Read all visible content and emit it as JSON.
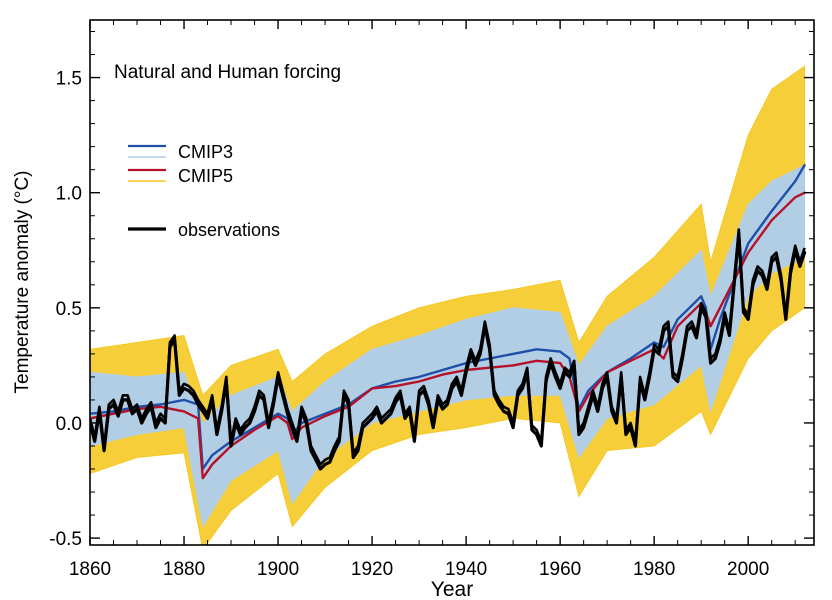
{
  "chart_data": {
    "type": "line",
    "title": "Natural and Human forcing",
    "xlabel": "Year",
    "ylabel": "Temperature anomaly (°C)",
    "xlim": [
      1860,
      2014
    ],
    "ylim": [
      -0.53,
      1.75
    ],
    "xticks": [
      1860,
      1880,
      1900,
      1920,
      1940,
      1960,
      1980,
      2000
    ],
    "xtick_labels": [
      "1860",
      "1880",
      "1900",
      "1920",
      "1940",
      "1960",
      "1980",
      "2000"
    ],
    "yticks": [
      -0.5,
      0.0,
      0.5,
      1.0,
      1.5
    ],
    "ytick_labels": [
      "-0.5",
      "0.0",
      "0.5",
      "1.0",
      "1.5"
    ],
    "grid": false,
    "legend_position": "top-left",
    "legend": [
      {
        "label": "CMIP3",
        "colors": [
          "#1f4fa8",
          "#aecdee"
        ]
      },
      {
        "label": "CMIP5",
        "colors": [
          "#b5122a",
          "#f5c518"
        ]
      },
      {
        "label": "observations",
        "colors": [
          "#000000"
        ]
      }
    ],
    "ensemble_spread": {
      "cmip5": {
        "color": "#f5c518",
        "x": [
          1860,
          1870,
          1880,
          1884,
          1890,
          1900,
          1903,
          1910,
          1920,
          1930,
          1940,
          1950,
          1960,
          1964,
          1970,
          1980,
          1990,
          1992,
          2000,
          2005,
          2012
        ],
        "low": [
          -0.22,
          -0.15,
          -0.13,
          -0.55,
          -0.38,
          -0.22,
          -0.45,
          -0.28,
          -0.12,
          -0.05,
          -0.02,
          0.02,
          0.0,
          -0.32,
          -0.12,
          -0.1,
          0.05,
          -0.05,
          0.28,
          0.4,
          0.5
        ],
        "high": [
          0.32,
          0.35,
          0.38,
          0.12,
          0.25,
          0.32,
          0.18,
          0.3,
          0.42,
          0.5,
          0.55,
          0.58,
          0.62,
          0.35,
          0.55,
          0.72,
          0.95,
          0.7,
          1.25,
          1.45,
          1.55
        ]
      },
      "cmip3": {
        "color": "#aecdee",
        "x": [
          1860,
          1870,
          1880,
          1884,
          1890,
          1900,
          1903,
          1910,
          1920,
          1930,
          1940,
          1950,
          1960,
          1964,
          1970,
          1980,
          1990,
          1992,
          2000,
          2005,
          2012
        ],
        "low": [
          -0.1,
          -0.05,
          -0.02,
          -0.45,
          -0.25,
          -0.12,
          -0.35,
          -0.15,
          0.0,
          0.05,
          0.1,
          0.12,
          0.12,
          -0.15,
          0.02,
          0.08,
          0.25,
          0.05,
          0.55,
          0.65,
          0.72
        ],
        "high": [
          0.22,
          0.2,
          0.22,
          0.0,
          0.12,
          0.2,
          0.05,
          0.18,
          0.32,
          0.38,
          0.45,
          0.5,
          0.48,
          0.25,
          0.42,
          0.55,
          0.75,
          0.55,
          0.95,
          1.05,
          1.12
        ]
      }
    },
    "series": [
      {
        "name": "CMIP3",
        "color": "#1f4fa8",
        "x": [
          1860,
          1865,
          1870,
          1875,
          1880,
          1883,
          1884,
          1886,
          1890,
          1895,
          1900,
          1902,
          1903,
          1905,
          1910,
          1915,
          1920,
          1925,
          1930,
          1935,
          1940,
          1945,
          1950,
          1955,
          1960,
          1962,
          1964,
          1966,
          1970,
          1975,
          1980,
          1982,
          1985,
          1990,
          1991,
          1992,
          1994,
          2000,
          2005,
          2010,
          2012
        ],
        "y": [
          0.04,
          0.05,
          0.07,
          0.08,
          0.1,
          0.08,
          -0.2,
          -0.14,
          -0.08,
          -0.02,
          0.04,
          0.02,
          -0.05,
          0.0,
          0.04,
          0.08,
          0.15,
          0.18,
          0.2,
          0.23,
          0.26,
          0.28,
          0.3,
          0.32,
          0.31,
          0.28,
          0.06,
          0.14,
          0.22,
          0.28,
          0.35,
          0.33,
          0.45,
          0.55,
          0.5,
          0.32,
          0.45,
          0.78,
          0.92,
          1.05,
          1.12
        ]
      },
      {
        "name": "CMIP5",
        "color": "#b5122a",
        "x": [
          1860,
          1865,
          1870,
          1875,
          1880,
          1883,
          1884,
          1886,
          1890,
          1895,
          1900,
          1902,
          1903,
          1905,
          1910,
          1915,
          1920,
          1925,
          1930,
          1935,
          1940,
          1945,
          1950,
          1955,
          1960,
          1962,
          1964,
          1966,
          1970,
          1975,
          1980,
          1982,
          1985,
          1990,
          1991,
          1992,
          1994,
          2000,
          2005,
          2010,
          2012
        ],
        "y": [
          0.02,
          0.04,
          0.06,
          0.07,
          0.05,
          0.02,
          -0.24,
          -0.18,
          -0.1,
          -0.03,
          0.03,
          0.0,
          -0.07,
          -0.02,
          0.03,
          0.07,
          0.15,
          0.16,
          0.18,
          0.21,
          0.23,
          0.24,
          0.25,
          0.27,
          0.26,
          0.2,
          0.05,
          0.12,
          0.22,
          0.27,
          0.32,
          0.28,
          0.42,
          0.52,
          0.48,
          0.42,
          0.5,
          0.74,
          0.88,
          0.98,
          1.0
        ]
      },
      {
        "name": "observations",
        "color": "#000000",
        "x": [
          1860,
          1861,
          1862,
          1863,
          1864,
          1865,
          1866,
          1867,
          1868,
          1869,
          1870,
          1871,
          1872,
          1873,
          1874,
          1875,
          1876,
          1877,
          1878,
          1879,
          1880,
          1881,
          1882,
          1883,
          1884,
          1885,
          1886,
          1887,
          1888,
          1889,
          1890,
          1891,
          1892,
          1893,
          1894,
          1895,
          1896,
          1897,
          1898,
          1899,
          1900,
          1901,
          1902,
          1903,
          1904,
          1905,
          1906,
          1907,
          1908,
          1909,
          1910,
          1911,
          1912,
          1913,
          1914,
          1915,
          1916,
          1917,
          1918,
          1919,
          1920,
          1921,
          1922,
          1923,
          1924,
          1925,
          1926,
          1927,
          1928,
          1929,
          1930,
          1931,
          1932,
          1933,
          1934,
          1935,
          1936,
          1937,
          1938,
          1939,
          1940,
          1941,
          1942,
          1943,
          1944,
          1945,
          1946,
          1947,
          1948,
          1949,
          1950,
          1951,
          1952,
          1953,
          1954,
          1955,
          1956,
          1957,
          1958,
          1959,
          1960,
          1961,
          1962,
          1963,
          1964,
          1965,
          1966,
          1967,
          1968,
          1969,
          1970,
          1971,
          1972,
          1973,
          1974,
          1975,
          1976,
          1977,
          1978,
          1979,
          1980,
          1981,
          1982,
          1983,
          1984,
          1985,
          1986,
          1987,
          1988,
          1989,
          1990,
          1991,
          1992,
          1993,
          1994,
          1995,
          1996,
          1997,
          1998,
          1999,
          2000,
          2001,
          2002,
          2003,
          2004,
          2005,
          2006,
          2007,
          2008,
          2009,
          2010,
          2011,
          2012
        ],
        "y": [
          0.0,
          -0.08,
          0.05,
          -0.12,
          0.06,
          0.08,
          0.03,
          0.1,
          0.1,
          0.04,
          0.06,
          0.0,
          0.04,
          0.07,
          -0.02,
          0.02,
          0.0,
          0.33,
          0.36,
          0.12,
          0.15,
          0.14,
          0.12,
          0.08,
          0.05,
          0.02,
          0.1,
          -0.05,
          0.05,
          0.18,
          -0.1,
          0.0,
          -0.05,
          -0.02,
          0.0,
          0.05,
          0.12,
          0.1,
          -0.02,
          0.08,
          0.2,
          0.12,
          0.04,
          -0.02,
          -0.08,
          0.05,
          0.0,
          -0.12,
          -0.16,
          -0.2,
          -0.18,
          -0.17,
          -0.12,
          -0.08,
          0.12,
          0.08,
          -0.15,
          -0.12,
          -0.02,
          0.0,
          0.02,
          0.05,
          0.0,
          0.02,
          0.04,
          0.09,
          0.12,
          0.02,
          0.05,
          -0.08,
          0.12,
          0.14,
          0.08,
          -0.02,
          0.1,
          0.06,
          0.08,
          0.15,
          0.18,
          0.12,
          0.22,
          0.3,
          0.25,
          0.3,
          0.42,
          0.32,
          0.12,
          0.08,
          0.05,
          0.04,
          -0.02,
          0.12,
          0.15,
          0.22,
          -0.03,
          -0.05,
          -0.1,
          0.18,
          0.26,
          0.2,
          0.15,
          0.22,
          0.2,
          0.25,
          -0.05,
          -0.02,
          0.05,
          0.12,
          0.05,
          0.15,
          0.2,
          0.05,
          0.0,
          0.2,
          -0.05,
          -0.02,
          -0.1,
          0.18,
          0.1,
          0.2,
          0.32,
          0.3,
          0.4,
          0.42,
          0.2,
          0.18,
          0.28,
          0.4,
          0.42,
          0.37,
          0.5,
          0.46,
          0.26,
          0.28,
          0.35,
          0.46,
          0.38,
          0.6,
          0.82,
          0.48,
          0.45,
          0.6,
          0.66,
          0.64,
          0.58,
          0.7,
          0.72,
          0.62,
          0.45,
          0.65,
          0.75,
          0.68,
          0.74
        ]
      }
    ]
  }
}
